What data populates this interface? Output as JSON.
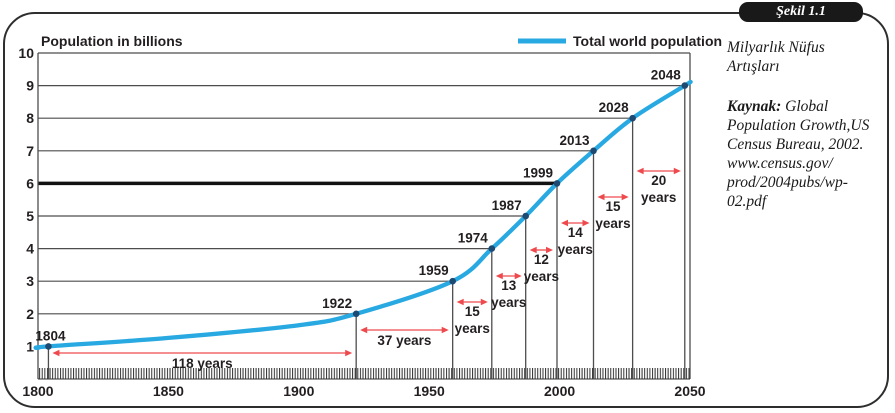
{
  "figure": {
    "badge_label": "Şekil 1.1",
    "sidebar": {
      "title_lines": [
        "Milyarlık Nüfus",
        "Artışları"
      ],
      "source_label": "Kaynak:",
      "source_lines": [
        "Global",
        "Population Growth,US",
        "Census Bureau, 2002.",
        "www.census.gov/",
        "prod/2004pubs/wp-",
        "02.pdf"
      ]
    }
  },
  "chart_data": {
    "type": "line",
    "title": "Population in billions",
    "legend": {
      "label": "Total world population",
      "position": "top-right"
    },
    "x_axis": {
      "min": 1800,
      "max": 2050,
      "ticks": [
        1800,
        1850,
        1900,
        1950,
        2000,
        2050
      ]
    },
    "y_axis": {
      "min": 0,
      "max": 10,
      "ticks": [
        1,
        2,
        3,
        4,
        5,
        6,
        7,
        8,
        9,
        10
      ]
    },
    "grid": "horizontal-lines-end-at-curve",
    "series": [
      {
        "name": "Total world population",
        "points": [
          [
            1800,
            0.95
          ],
          [
            1804,
            1
          ],
          [
            1850,
            1.26
          ],
          [
            1900,
            1.65
          ],
          [
            1922,
            2
          ],
          [
            1959,
            3
          ],
          [
            1974,
            4
          ],
          [
            1987,
            5
          ],
          [
            1999,
            6
          ],
          [
            2013,
            7
          ],
          [
            2028,
            8
          ],
          [
            2048,
            9
          ],
          [
            2050,
            9.1
          ]
        ]
      }
    ],
    "milestones": [
      {
        "year": 1804,
        "billions": 1
      },
      {
        "year": 1922,
        "billions": 2
      },
      {
        "year": 1959,
        "billions": 3
      },
      {
        "year": 1974,
        "billions": 4
      },
      {
        "year": 1987,
        "billions": 5
      },
      {
        "year": 1999,
        "billions": 6
      },
      {
        "year": 2013,
        "billions": 7
      },
      {
        "year": 2028,
        "billions": 8
      },
      {
        "year": 2048,
        "billions": 9
      }
    ],
    "intervals": [
      {
        "from": 1804,
        "to": 1922,
        "label": "118 years"
      },
      {
        "from": 1922,
        "to": 1959,
        "label": "37 years"
      },
      {
        "from": 1959,
        "to": 1974,
        "label": "15 years"
      },
      {
        "from": 1974,
        "to": 1987,
        "label": "13 years"
      },
      {
        "from": 1987,
        "to": 1999,
        "label": "12 years"
      },
      {
        "from": 1999,
        "to": 2013,
        "label": "14 years"
      },
      {
        "from": 2013,
        "to": 2028,
        "label": "15 years"
      },
      {
        "from": 2028,
        "to": 2048,
        "label": "20 years"
      }
    ],
    "emphasized_level": 6,
    "colors": {
      "curve": "#29a9e1",
      "arrow": "#ee4a4e",
      "dot": "#1d4a73",
      "grid": "#4d4d4d",
      "emphasis": "#121212",
      "text": "#231f20"
    }
  }
}
